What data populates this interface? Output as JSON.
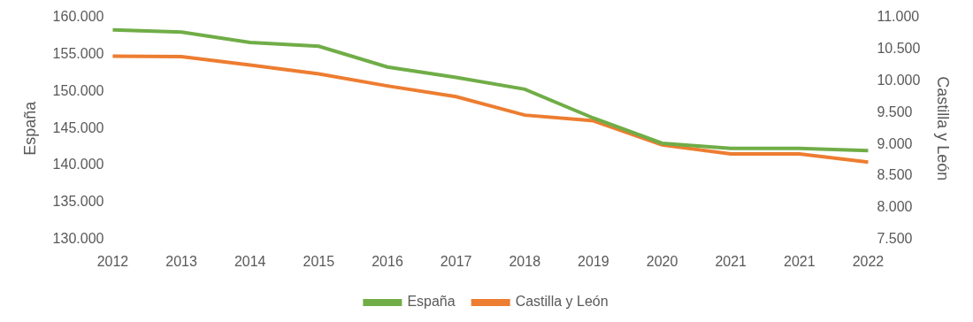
{
  "chart_data": {
    "type": "line",
    "categories": [
      "2012",
      "2013",
      "2014",
      "2015",
      "2016",
      "2017",
      "2018",
      "2019",
      "2020",
      "2021",
      "2021",
      "2022"
    ],
    "series": [
      {
        "name": "España",
        "color": "#70ad47",
        "axis": "y",
        "values": [
          158300,
          158000,
          156600,
          156100,
          153300,
          151900,
          150300,
          146400,
          143000,
          142300,
          142300,
          142000
        ]
      },
      {
        "name": "Castilla y León",
        "color": "#ed7d31",
        "axis": "y2",
        "values": [
          10390,
          10380,
          10250,
          10110,
          9920,
          9750,
          9460,
          9370,
          8990,
          8850,
          8850,
          8720
        ]
      }
    ],
    "y_label": "España",
    "y2_label": "Castilla y León",
    "ylim": [
      130000,
      160000
    ],
    "yticks": [
      {
        "value": 130000,
        "label": "130.000"
      },
      {
        "value": 135000,
        "label": "135.000"
      },
      {
        "value": 140000,
        "label": "140.000"
      },
      {
        "value": 145000,
        "label": "145.000"
      },
      {
        "value": 150000,
        "label": "150.000"
      },
      {
        "value": 155000,
        "label": "155.000"
      },
      {
        "value": 160000,
        "label": "160.000"
      }
    ],
    "y2lim": [
      7500,
      11000
    ],
    "y2ticks": [
      {
        "value": 7500,
        "label": "7.500"
      },
      {
        "value": 8000,
        "label": "8.000"
      },
      {
        "value": 8500,
        "label": "8.500"
      },
      {
        "value": 9000,
        "label": "9.000"
      },
      {
        "value": 9500,
        "label": "9.500"
      },
      {
        "value": 10000,
        "label": "10.000"
      },
      {
        "value": 10500,
        "label": "10.500"
      },
      {
        "value": 11000,
        "label": "11.000"
      }
    ],
    "grid": false,
    "legend": "bottom"
  }
}
